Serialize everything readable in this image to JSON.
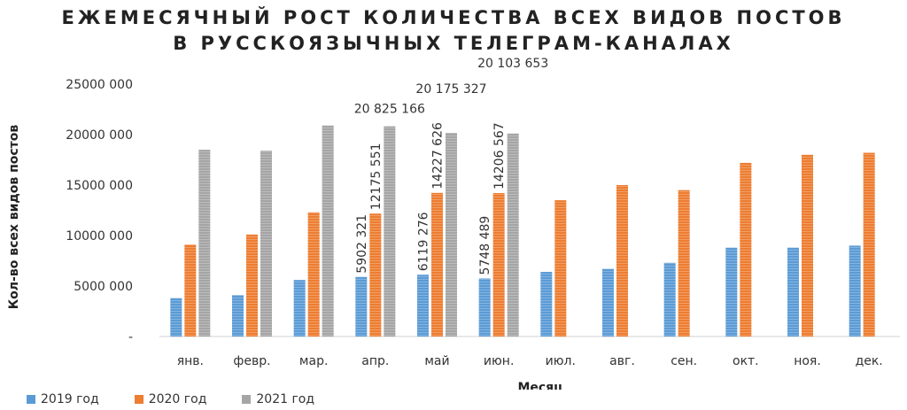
{
  "chart_data": {
    "type": "bar",
    "title_lines": [
      "ЕЖЕМЕСЯЧНЫЙ РОСТ КОЛИЧЕСТВА ВСЕХ ВИДОВ ПОСТОВ",
      "В РУССКОЯЗЫЧНЫХ  ТЕЛЕГРАМ-КАНАЛАХ"
    ],
    "xlabel": "Месяц",
    "ylabel": "Кол-во всех видов  постов",
    "ylim": [
      0,
      25000000
    ],
    "y_ticks": [
      {
        "value": 0,
        "label": "-"
      },
      {
        "value": 5000000,
        "label": "5000 000"
      },
      {
        "value": 10000000,
        "label": "10000 000"
      },
      {
        "value": 15000000,
        "label": "15000 000"
      },
      {
        "value": 20000000,
        "label": "20000 000"
      },
      {
        "value": 25000000,
        "label": "25000 000"
      }
    ],
    "categories": [
      "янв.",
      "февр.",
      "мар.",
      "апр.",
      "май",
      "июн.",
      "июл.",
      "авг.",
      "сен.",
      "окт.",
      "ноя.",
      "дек."
    ],
    "series": [
      {
        "name": "2019 год",
        "color": "#5b9bd5",
        "values": [
          3800000,
          4100000,
          5600000,
          5902321,
          6119276,
          5748489,
          6400000,
          6700000,
          7300000,
          8800000,
          8800000,
          9000000
        ],
        "labels": [
          null,
          null,
          null,
          "5902 321",
          "6119 276",
          "5748 489",
          null,
          null,
          null,
          null,
          null,
          null
        ]
      },
      {
        "name": "2020 год",
        "color": "#ed7d31",
        "values": [
          9100000,
          10100000,
          12300000,
          12175551,
          14227626,
          14206567,
          13500000,
          15000000,
          14500000,
          17200000,
          18000000,
          18200000
        ],
        "labels": [
          null,
          null,
          null,
          "12175 551",
          "14227 626",
          "14206 567",
          null,
          null,
          null,
          null,
          null,
          null
        ]
      },
      {
        "name": "2021 год",
        "color": "#a5a5a5",
        "values": [
          18500000,
          18400000,
          20900000,
          20825166,
          20175327,
          20103653,
          null,
          null,
          null,
          null,
          null,
          null
        ],
        "labels": [
          null,
          null,
          null,
          "20 825 166",
          "20 175 327",
          "20 103 653",
          null,
          null,
          null,
          null,
          null,
          null
        ]
      }
    ],
    "legend_position": "bottom-left",
    "grid": false
  }
}
